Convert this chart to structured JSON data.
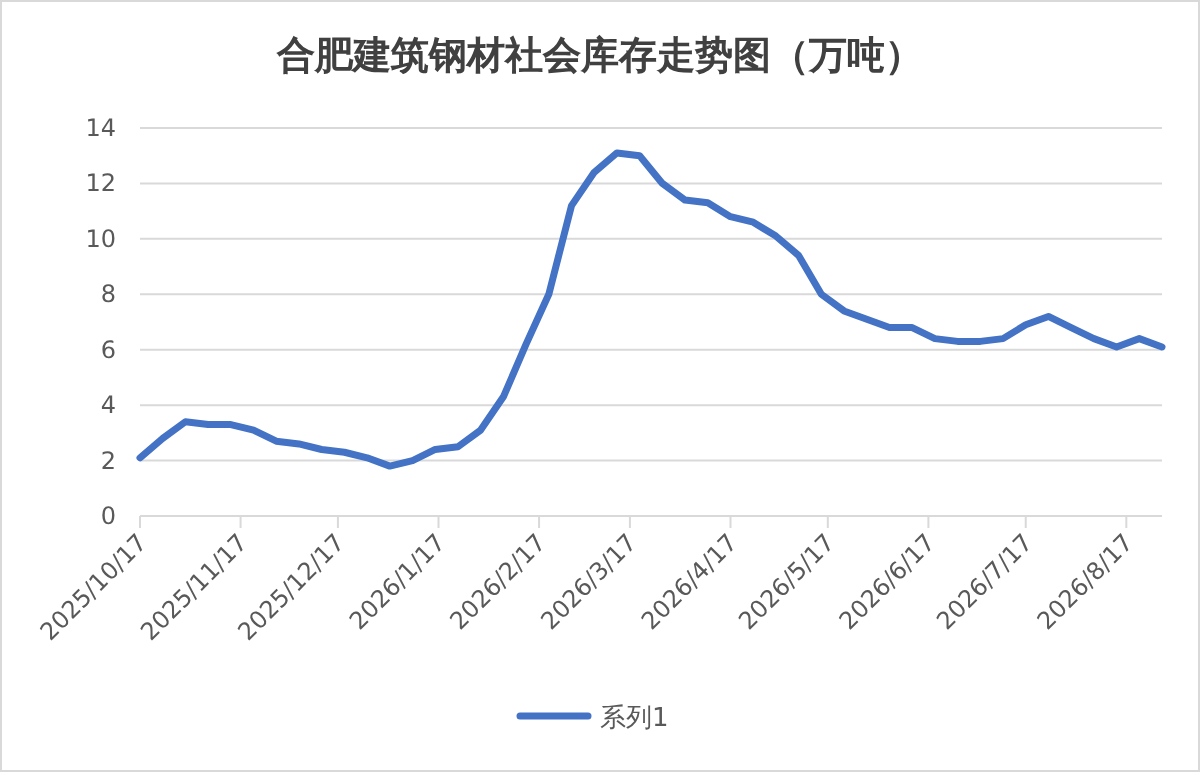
{
  "chart_data": {
    "type": "line",
    "title": "合肥建筑钢材社会库存走势图（万吨）",
    "x": [
      "2025-10-17",
      "2025-10-24",
      "2025-10-31",
      "2025-11-07",
      "2025-11-14",
      "2025-11-21",
      "2025-11-28",
      "2025-12-05",
      "2025-12-12",
      "2025-12-19",
      "2025-12-26",
      "2026-01-02",
      "2026-01-09",
      "2026-01-16",
      "2026-01-23",
      "2026-01-30",
      "2026-02-06",
      "2026-02-13",
      "2026-02-20",
      "2026-02-27",
      "2026-03-06",
      "2026-03-13",
      "2026-03-20",
      "2026-03-27",
      "2026-04-03",
      "2026-04-10",
      "2026-04-17",
      "2026-04-24",
      "2026-05-01",
      "2026-05-08",
      "2026-05-15",
      "2026-05-22",
      "2026-05-29",
      "2026-06-05",
      "2026-06-12",
      "2026-06-19",
      "2026-06-26",
      "2026-07-03",
      "2026-07-10",
      "2026-07-17",
      "2026-07-24",
      "2026-07-31",
      "2026-08-07",
      "2026-08-14",
      "2026-08-21",
      "2026-08-28"
    ],
    "series": [
      {
        "name": "系列1",
        "color": "#4472c4",
        "values": [
          2.1,
          2.8,
          3.4,
          3.3,
          3.3,
          3.1,
          2.7,
          2.6,
          2.4,
          2.3,
          2.1,
          1.8,
          2.0,
          2.4,
          2.5,
          3.1,
          4.3,
          6.2,
          8.0,
          11.2,
          12.4,
          13.1,
          13.0,
          12.0,
          11.4,
          11.3,
          10.8,
          10.6,
          10.1,
          9.4,
          8.0,
          7.4,
          7.1,
          6.8,
          6.8,
          6.4,
          6.3,
          6.3,
          6.4,
          6.9,
          7.2,
          6.8,
          6.4,
          6.1,
          6.4,
          6.1
        ]
      }
    ],
    "xlim": [
      "2025-10-17",
      "2026-08-28"
    ],
    "xticks": [
      {
        "value": "2025-10-17",
        "label": "2025/10/17"
      },
      {
        "value": "2025-11-17",
        "label": "2025/11/17"
      },
      {
        "value": "2025-12-17",
        "label": "2025/12/17"
      },
      {
        "value": "2026-01-17",
        "label": "2026/1/17"
      },
      {
        "value": "2026-02-17",
        "label": "2026/2/17"
      },
      {
        "value": "2026-03-17",
        "label": "2026/3/17"
      },
      {
        "value": "2026-04-17",
        "label": "2026/4/17"
      },
      {
        "value": "2026-05-17",
        "label": "2026/5/17"
      },
      {
        "value": "2026-06-17",
        "label": "2026/6/17"
      },
      {
        "value": "2026-07-17",
        "label": "2026/7/17"
      },
      {
        "value": "2026-08-17",
        "label": "2026/8/17"
      }
    ],
    "ylim": [
      0,
      14
    ],
    "yticks": [
      0,
      2,
      4,
      6,
      8,
      10,
      12,
      14
    ],
    "grid": "y",
    "legend": "bottom",
    "line_style": "solid"
  }
}
